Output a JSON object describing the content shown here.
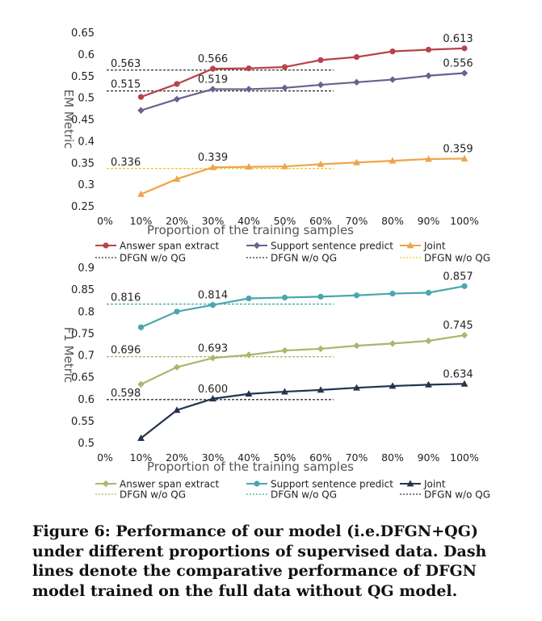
{
  "caption": "Figure 6: Performance of our model (i.e.DFGN+QG) under different proportions of supervised data. Dash lines denote the comparative performance of DFGN model trained on the full data without QG model.",
  "chart_data": [
    {
      "type": "line",
      "ylabel": "EM Metric",
      "xlabel": "Proportion of the training samples",
      "categories": [
        "0%",
        "10%",
        "20%",
        "30%",
        "40%",
        "50%",
        "60%",
        "70%",
        "80%",
        "90%",
        "100%"
      ],
      "ylim": [
        0.25,
        0.65
      ],
      "yticks": [
        "0.25",
        "0.3",
        "0.35",
        "0.4",
        "0.45",
        "0.5",
        "0.55",
        "0.6",
        "0.65"
      ],
      "grid": false,
      "legend_position": "bottom",
      "series": [
        {
          "name": "Answer span extract",
          "color": "#b8434a",
          "marker": "circle",
          "values": [
            null,
            0.501,
            0.531,
            0.566,
            0.567,
            0.57,
            0.586,
            0.593,
            0.606,
            0.61,
            0.613
          ]
        },
        {
          "name": "Support sentence predict",
          "color": "#6e5f8e",
          "marker": "diamond",
          "values": [
            null,
            0.47,
            0.496,
            0.519,
            0.519,
            0.522,
            0.529,
            0.535,
            0.541,
            0.55,
            0.556
          ]
        },
        {
          "name": "Joint",
          "color": "#eea448",
          "marker": "triangle",
          "values": [
            null,
            0.277,
            0.312,
            0.339,
            0.34,
            0.341,
            0.346,
            0.35,
            0.354,
            0.358,
            0.359
          ]
        }
      ],
      "baselines": [
        {
          "name": "DFGN w/o QG",
          "value": 0.563,
          "color": "#333333"
        },
        {
          "name": "DFGN w/o QG",
          "value": 0.515,
          "color": "#333333"
        },
        {
          "name": "DFGN w/o QG",
          "value": 0.336,
          "color": "#e6c628"
        }
      ],
      "value_labels": [
        {
          "text": "0.563",
          "kind": "baseline"
        },
        {
          "text": "0.515",
          "kind": "baseline"
        },
        {
          "text": "0.336",
          "kind": "baseline"
        },
        {
          "text": "0.566",
          "series": 0,
          "index": 3
        },
        {
          "text": "0.613",
          "series": 0,
          "index": 10
        },
        {
          "text": "0.519",
          "series": 1,
          "index": 3
        },
        {
          "text": "0.556",
          "series": 1,
          "index": 10
        },
        {
          "text": "0.339",
          "series": 2,
          "index": 3
        },
        {
          "text": "0.359",
          "series": 2,
          "index": 10
        }
      ]
    },
    {
      "type": "line",
      "ylabel": "F1 Metric",
      "xlabel": "Proportion of the training samples",
      "categories": [
        "0%",
        "10%",
        "20%",
        "30%",
        "40%",
        "50%",
        "60%",
        "70%",
        "80%",
        "90%",
        "100%"
      ],
      "ylim": [
        0.5,
        0.9
      ],
      "yticks": [
        "0.5",
        "0.55",
        "0.6",
        "0.65",
        "0.7",
        "0.75",
        "0.8",
        "0.85",
        "0.9"
      ],
      "grid": false,
      "legend_position": "bottom",
      "series": [
        {
          "name": "Answer span extract",
          "color": "#a9b86b",
          "marker": "diamond",
          "values": [
            null,
            0.633,
            0.672,
            0.693,
            0.7,
            0.71,
            0.714,
            0.721,
            0.726,
            0.732,
            0.745
          ]
        },
        {
          "name": "Support sentence predict",
          "color": "#4aa6ad",
          "marker": "circle",
          "values": [
            null,
            0.763,
            0.799,
            0.814,
            0.829,
            0.831,
            0.833,
            0.836,
            0.84,
            0.842,
            0.857
          ]
        },
        {
          "name": "Joint",
          "color": "#22344f",
          "marker": "triangle",
          "values": [
            null,
            0.51,
            0.574,
            0.6,
            0.611,
            0.616,
            0.62,
            0.625,
            0.629,
            0.632,
            0.634
          ]
        }
      ],
      "baselines": [
        {
          "name": "DFGN w/o QG",
          "value": 0.816,
          "color": "#4aa6ad"
        },
        {
          "name": "DFGN w/o QG",
          "value": 0.696,
          "color": "#a9b86b"
        },
        {
          "name": "DFGN w/o QG",
          "value": 0.598,
          "color": "#333333"
        }
      ],
      "value_labels": [
        {
          "text": "0.816",
          "kind": "baseline"
        },
        {
          "text": "0.696",
          "kind": "baseline"
        },
        {
          "text": "0.598",
          "kind": "baseline"
        },
        {
          "text": "0.814",
          "series": 1,
          "index": 3
        },
        {
          "text": "0.857",
          "series": 1,
          "index": 10
        },
        {
          "text": "0.693",
          "series": 0,
          "index": 3
        },
        {
          "text": "0.745",
          "series": 0,
          "index": 10
        },
        {
          "text": "0.600",
          "series": 2,
          "index": 3
        },
        {
          "text": "0.634",
          "series": 2,
          "index": 10
        }
      ]
    }
  ]
}
